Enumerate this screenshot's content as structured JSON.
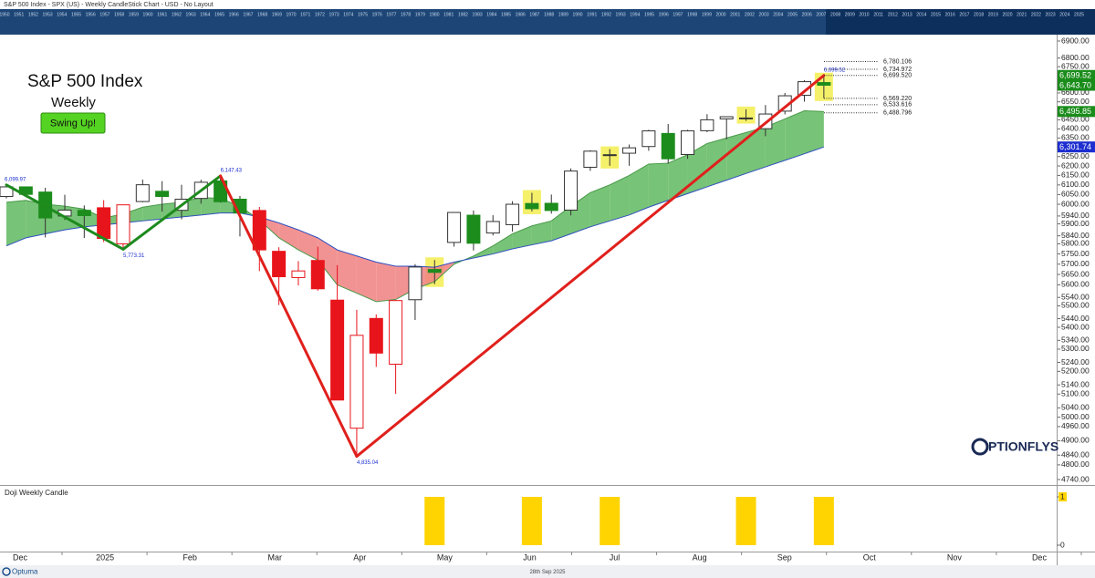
{
  "chart_data": {
    "type": "candlestick",
    "title": "S&P 500 Index - SPX (US) - Weekly CandleStick Chart - USD - No Layout",
    "heading": "S&P 500 Index",
    "subheading": "Weekly",
    "button": "Swing Up!",
    "date_label": "28th Sep 2025",
    "brand": "PTIONFLYS",
    "platform": "Optuma",
    "timeline_years": [
      1950,
      1951,
      1952,
      1953,
      1954,
      1955,
      1956,
      1957,
      1958,
      1959,
      1960,
      1961,
      1962,
      1963,
      1964,
      1965,
      1966,
      1967,
      1968,
      1969,
      1970,
      1971,
      1972,
      1973,
      1974,
      1975,
      1976,
      1977,
      1978,
      1979,
      1980,
      1981,
      1982,
      1983,
      1984,
      1985,
      1986,
      1987,
      1988,
      1989,
      1990,
      1991,
      1992,
      1993,
      1994,
      1995,
      1996,
      1997,
      1998,
      1999,
      2000,
      2001,
      2002,
      2003,
      2004,
      2005,
      2006,
      2007,
      2008,
      2009,
      2010,
      2011,
      2012,
      2013,
      2014,
      2015,
      2016,
      2017,
      2018,
      2019,
      2020,
      2021,
      2022,
      2023,
      2024,
      2025
    ],
    "x_labels": [
      "Dec",
      "2025",
      "Feb",
      "Mar",
      "Apr",
      "May",
      "Jun",
      "Jul",
      "Aug",
      "Sep",
      "Oct",
      "Nov",
      "Dec"
    ],
    "open": [
      6040,
      6090,
      6063,
      5940,
      5969,
      5982,
      5800,
      6014,
      6067,
      5969,
      6030,
      6121,
      6026,
      5968,
      5763,
      5635,
      5718,
      5527,
      4953,
      5441,
      5232,
      5529,
      5674,
      5807,
      5944,
      5854,
      5896,
      6004,
      6005,
      5970,
      6193,
      6259,
      6268,
      6304,
      6375,
      6261,
      6390,
      6455,
      6457,
      6401,
      6498,
      6587,
      6659
    ],
    "high": [
      6099.97,
      6092,
      6085,
      6049,
      5994,
      6021,
      5996,
      6128,
      6120,
      6101,
      6127,
      6147.43,
      6043,
      5986,
      5783,
      5715,
      5786,
      5695,
      5481,
      5460,
      5528,
      5700,
      5720,
      5959,
      5968,
      5944,
      6016,
      6059,
      6050,
      6187,
      6284,
      6290,
      6315,
      6395,
      6427,
      6395,
      6481,
      6467,
      6508,
      6532,
      6600,
      6672,
      6699.52
    ],
    "low": [
      6030,
      6036,
      5832,
      5920,
      5829,
      5809,
      5773.31,
      6010,
      5962,
      5923,
      6003,
      6008,
      5837,
      5666,
      5504,
      5597,
      5572,
      5074,
      4835.04,
      5220,
      5101,
      5434,
      5603,
      5786,
      5767,
      5842,
      5861,
      5963,
      5952,
      5943,
      6174,
      6201,
      6201,
      6281,
      6212,
      6238,
      6382,
      6343,
      6444,
      6360,
      6480,
      6551,
      6570
    ],
    "close": [
      6090,
      6051,
      5930,
      5970,
      5942,
      5827,
      5997,
      6101,
      6040,
      6026,
      6114,
      6013,
      5955,
      5770,
      5639,
      5667,
      5581,
      5074,
      5363,
      5282,
      5525,
      5686,
      5660,
      5958,
      5803,
      5912,
      6000,
      5977,
      5968,
      6173,
      6279,
      6260,
      6297,
      6389,
      6238,
      6389,
      6450,
      6467,
      6460,
      6482,
      6584,
      6664,
      6643.7
    ],
    "colors": [
      "#1c8c1c",
      "#1c8c1c",
      "#1c8c1c",
      "#1c8c1c",
      "#1c8c1c",
      "#e8141b",
      "#e8141b",
      "#1c8c1c",
      "#1c8c1c",
      "#1c8c1c",
      "#1c8c1c",
      "#1c8c1c",
      "#1c8c1c",
      "#e8141b",
      "#e8141b",
      "#e8141b",
      "#e8141b",
      "#e8141b",
      "#e8141b",
      "#e8141b",
      "#e8141b",
      "#1c8c1c",
      "#1c8c1c",
      "#1c8c1c",
      "#1c8c1c",
      "#1c8c1c",
      "#1c8c1c",
      "#1c8c1c",
      "#1c8c1c",
      "#1c8c1c",
      "#1c8c1c",
      "#1c8c1c",
      "#1c8c1c",
      "#1c8c1c",
      "#1c8c1c",
      "#1c8c1c",
      "#1c8c1c",
      "#1c8c1c",
      "#1c8c1c",
      "#1c8c1c",
      "#1c8c1c",
      "#1c8c1c",
      "#1c8c1c"
    ],
    "log_scale": true,
    "ylim": [
      4740,
      6900
    ],
    "yticks": [
      {
        "value": 6900,
        "label": "6900.00"
      },
      {
        "value": 6800,
        "label": "6800.00"
      },
      {
        "value": 6750,
        "label": "6750.00"
      },
      {
        "value": 6700,
        "label": "6700.00"
      },
      {
        "value": 6600,
        "label": "6600.00"
      },
      {
        "value": 6550,
        "label": "6550.00"
      },
      {
        "value": 6500,
        "label": "6500.00"
      },
      {
        "value": 6450,
        "label": "6450.00"
      },
      {
        "value": 6400,
        "label": "6400.00"
      },
      {
        "value": 6350,
        "label": "6350.00"
      },
      {
        "value": 6250,
        "label": "6250.00"
      },
      {
        "value": 6200,
        "label": "6200.00"
      },
      {
        "value": 6150,
        "label": "6150.00"
      },
      {
        "value": 6100,
        "label": "6100.00"
      },
      {
        "value": 6050,
        "label": "6050.00"
      },
      {
        "value": 6000,
        "label": "6000.00"
      },
      {
        "value": 5940,
        "label": "5940.00"
      },
      {
        "value": 5900,
        "label": "5900.00"
      },
      {
        "value": 5840,
        "label": "5840.00"
      },
      {
        "value": 5800,
        "label": "5800.00"
      },
      {
        "value": 5750,
        "label": "5750.00"
      },
      {
        "value": 5700,
        "label": "5700.00"
      },
      {
        "value": 5650,
        "label": "5650.00"
      },
      {
        "value": 5600,
        "label": "5600.00"
      },
      {
        "value": 5540,
        "label": "5540.00"
      },
      {
        "value": 5500,
        "label": "5500.00"
      },
      {
        "value": 5440,
        "label": "5440.00"
      },
      {
        "value": 5400,
        "label": "5400.00"
      },
      {
        "value": 5340,
        "label": "5340.00"
      },
      {
        "value": 5300,
        "label": "5300.00"
      },
      {
        "value": 5240,
        "label": "5240.00"
      },
      {
        "value": 5200,
        "label": "5200.00"
      },
      {
        "value": 5140,
        "label": "5140.00"
      },
      {
        "value": 5100,
        "label": "5100.00"
      },
      {
        "value": 5040,
        "label": "5040.00"
      },
      {
        "value": 5000,
        "label": "5000.00"
      },
      {
        "value": 4960,
        "label": "4960.00"
      },
      {
        "value": 4900,
        "label": "4900.00"
      },
      {
        "value": 4840,
        "label": "4840.00"
      },
      {
        "value": 4800,
        "label": "4800.00"
      },
      {
        "value": 4740,
        "label": "4740.00"
      }
    ],
    "cloud": {
      "fast": [
        6010,
        6020,
        6000,
        5990,
        5975,
        5930,
        5950,
        5985,
        6000,
        6010,
        6035,
        6030,
        5990,
        5920,
        5830,
        5770,
        5720,
        5600,
        5560,
        5520,
        5530,
        5580,
        5615,
        5700,
        5740,
        5790,
        5850,
        5890,
        5915,
        5990,
        6060,
        6100,
        6150,
        6210,
        6215,
        6260,
        6320,
        6350,
        6380,
        6410,
        6455,
        6500,
        6495.85
      ],
      "slow": [
        5790,
        5830,
        5850,
        5870,
        5885,
        5895,
        5905,
        5915,
        5925,
        5935,
        5945,
        5955,
        5955,
        5935,
        5905,
        5870,
        5830,
        5770,
        5740,
        5710,
        5690,
        5690,
        5685,
        5710,
        5730,
        5750,
        5775,
        5795,
        5815,
        5850,
        5885,
        5915,
        5945,
        5985,
        6020,
        6055,
        6090,
        6125,
        6160,
        6195,
        6230,
        6265,
        6301.74
      ],
      "up_color": "#5fb85f",
      "down_color": "#f08080",
      "fast_color": "#4a9a4a",
      "slow_color": "#3050c0"
    },
    "swing": {
      "values": [
        6099.97,
        5773.31,
        6147.43,
        4835.04,
        6699.52
      ],
      "value_labels": [
        "6,099.97",
        "5,773.31",
        "6,147.43",
        "4,835.04",
        "6,699.52"
      ],
      "colors": [
        "#1e8a1e",
        "#1e8a1e",
        "#e0201c",
        "#e0201c"
      ]
    },
    "levels": {
      "values": [
        6780.106,
        6734.972,
        6699.52,
        6569.22,
        6533.616,
        6488.796
      ],
      "value_labels": [
        "6,780.106",
        "6,734.972",
        "6,699.520",
        "6,569.220",
        "6,533.616",
        "6,488.796"
      ]
    },
    "price_tags": {
      "values": [
        6699.52,
        6643.7,
        6495.85,
        6301.74
      ],
      "value_labels": [
        "6,699.52",
        "6,643.70",
        "6,495.85",
        "6,301.74"
      ],
      "colors": [
        "#1a8c1a",
        "#1a8c1a",
        "#1a8c1a",
        "#1d2fd0"
      ]
    },
    "highlight_color": "#f5f06a",
    "doji": {
      "title": "Doji Weekly Candle",
      "values": [
        0,
        0,
        0,
        0,
        0,
        0,
        0,
        0,
        0,
        0,
        0,
        0,
        0,
        0,
        0,
        0,
        0,
        0,
        0,
        0,
        0,
        0,
        1,
        0,
        0,
        0,
        0,
        1,
        0,
        0,
        0,
        1,
        0,
        0,
        0,
        0,
        0,
        0,
        1,
        0,
        0,
        0,
        1
      ],
      "ylim": [
        0,
        1
      ],
      "yticks": [
        1,
        0
      ],
      "color": "#ffd400"
    }
  }
}
